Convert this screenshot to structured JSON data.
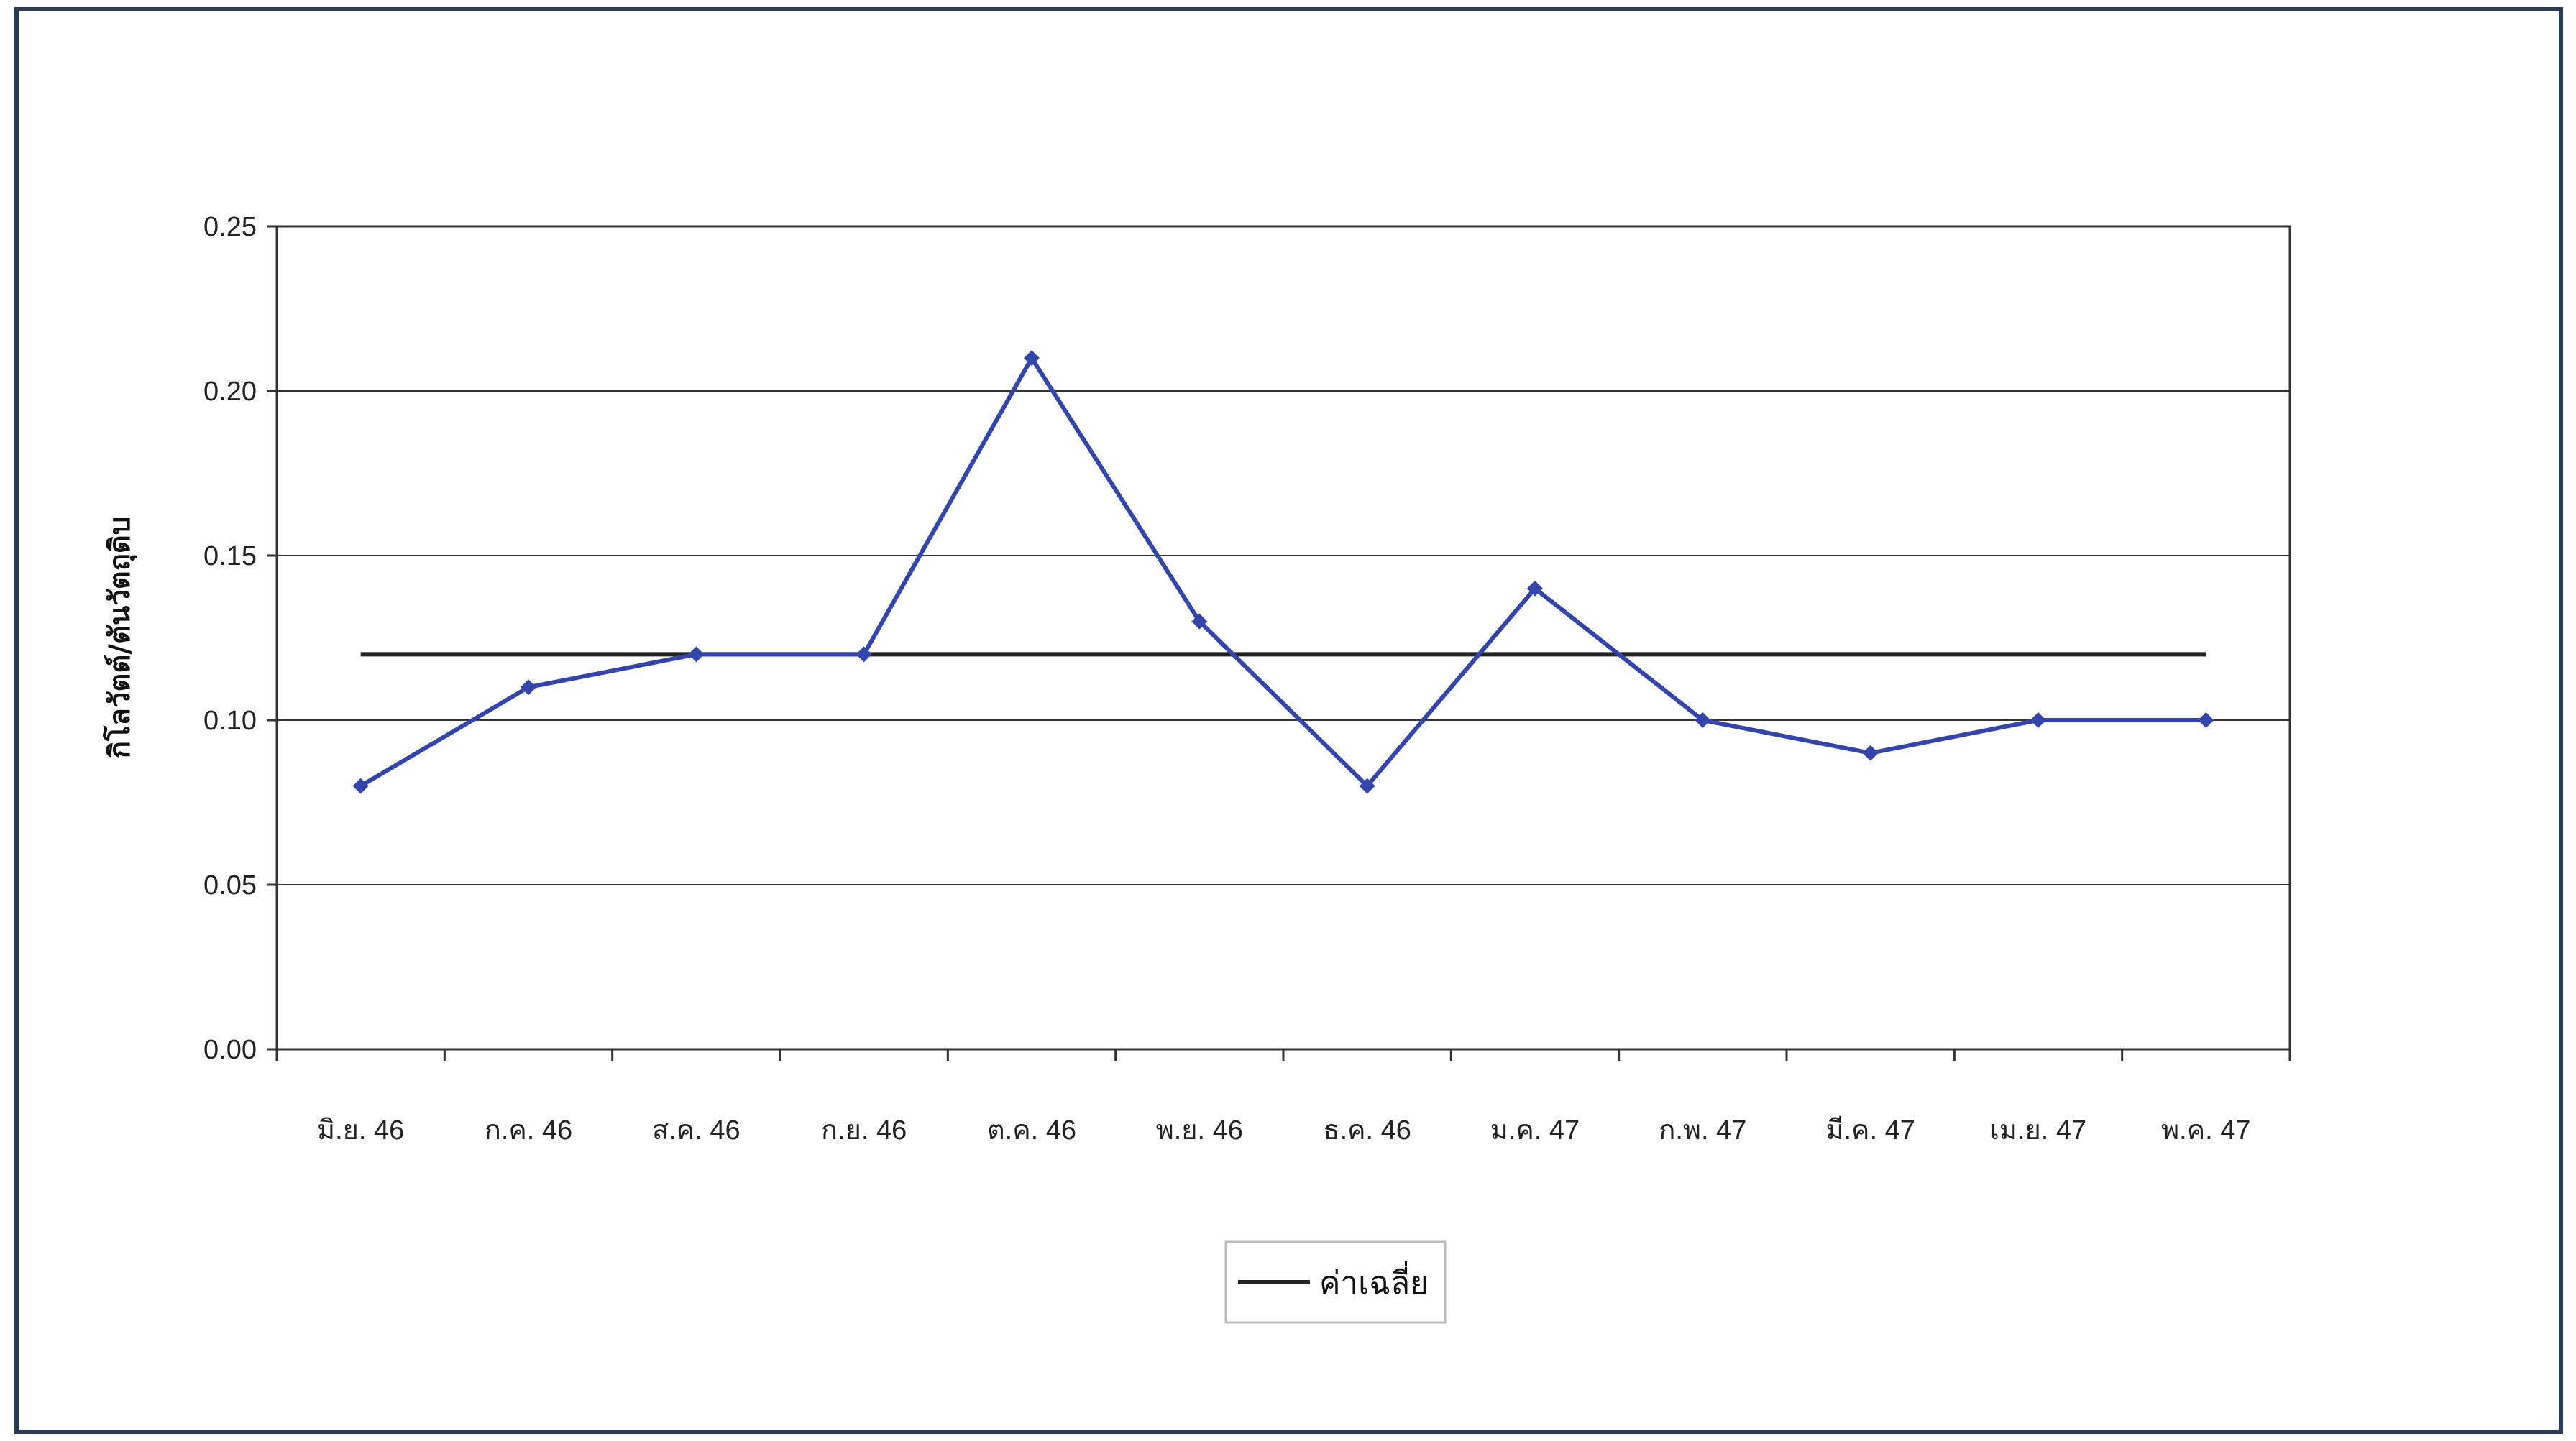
{
  "chart_data": {
    "type": "line",
    "ylabel": "กิโลวัตต์/ตันวัตถุดิบ",
    "xlabel": "",
    "title": "",
    "categories": [
      "มิ.ย. 46",
      "ก.ค. 46",
      "ส.ค. 46",
      "ก.ย. 46",
      "ต.ค. 46",
      "พ.ย. 46",
      "ธ.ค. 46",
      "ม.ค. 47",
      "ก.พ. 47",
      "มี.ค. 47",
      "เม.ย. 47",
      "พ.ค. 47"
    ],
    "ylim": [
      0,
      0.25
    ],
    "yticks": [
      "0.00",
      "0.05",
      "0.10",
      "0.15",
      "0.20",
      "0.25"
    ],
    "grid": true,
    "legend_position": "bottom-center",
    "series": [
      {
        "name": "",
        "color": "#3344aa",
        "marker": "diamond",
        "values": [
          0.08,
          0.11,
          0.12,
          0.12,
          0.21,
          0.13,
          0.08,
          0.14,
          0.1,
          0.09,
          0.1,
          0.1
        ]
      },
      {
        "name": "ค่าเฉลี่ย",
        "color": "#222222",
        "marker": "none",
        "values": [
          0.12,
          0.12,
          0.12,
          0.12,
          0.12,
          0.12,
          0.12,
          0.12,
          0.12,
          0.12,
          0.12,
          0.12
        ]
      }
    ]
  }
}
